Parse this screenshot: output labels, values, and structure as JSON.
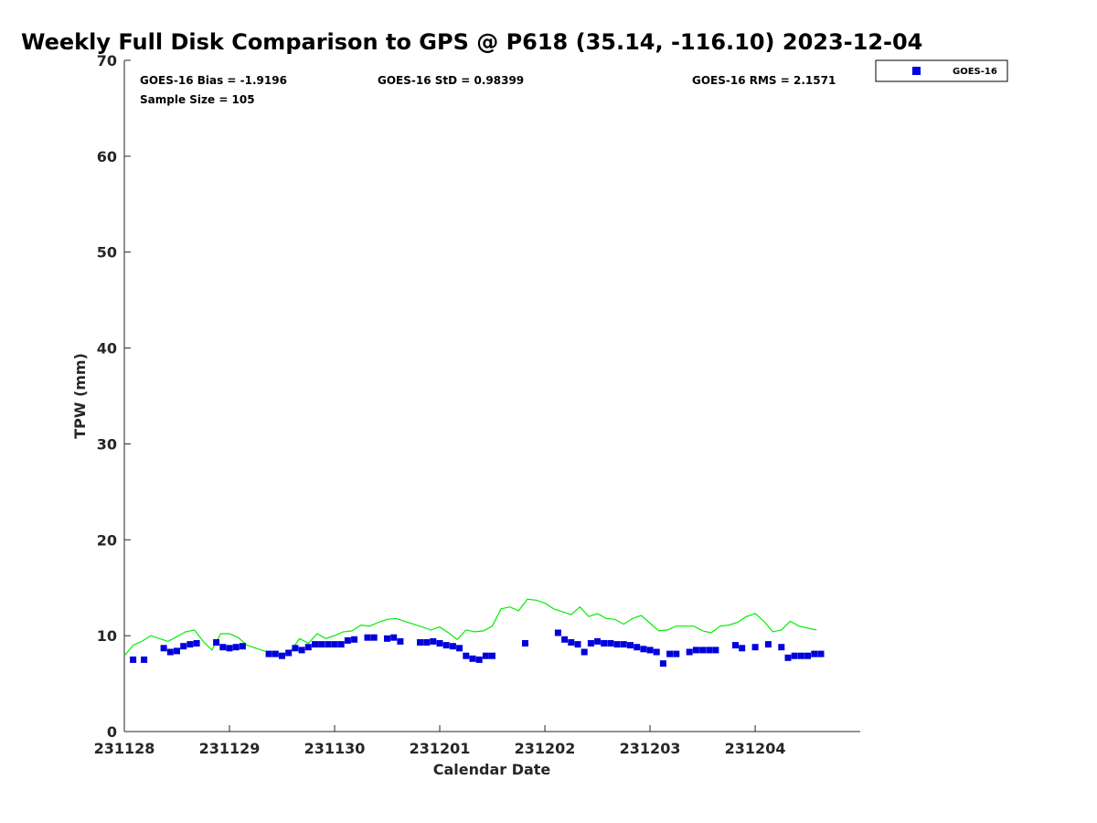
{
  "chart_data": {
    "type": "scatter",
    "title": "Weekly Full Disk Comparison to GPS @ P618 (35.14, -116.10) 2023-12-04",
    "xlabel": "Calendar Date",
    "ylabel": "TPW (mm)",
    "xlim": [
      "2023-11-28T00:00",
      "2023-12-04T23:59"
    ],
    "ylim": [
      0,
      70
    ],
    "y_ticks": [
      0,
      10,
      20,
      30,
      40,
      50,
      60,
      70
    ],
    "x_ticks": [
      {
        "value": "2023-11-28T00:00",
        "label": "231128"
      },
      {
        "value": "2023-11-29T00:00",
        "label": "231129"
      },
      {
        "value": "2023-11-30T00:00",
        "label": "231130"
      },
      {
        "value": "2023-12-01T00:00",
        "label": "231201"
      },
      {
        "value": "2023-12-02T00:00",
        "label": "231202"
      },
      {
        "value": "2023-12-03T00:00",
        "label": "231203"
      },
      {
        "value": "2023-12-04T00:00",
        "label": "231204"
      }
    ],
    "grid": false,
    "legend_position": "outside-top-right",
    "stats": {
      "bias": "GOES-16 Bias = -1.9196",
      "std": "GOES-16 StD = 0.98399",
      "rms": "GOES-16 RMS = 2.1571",
      "sample": "Sample Size = 105"
    },
    "series": [
      {
        "name": "GOES-16",
        "marker": "square",
        "color": "#0000dd",
        "points": [
          [
            "2023-11-28T02:00",
            7.5
          ],
          [
            "2023-11-28T04:30",
            7.5
          ],
          [
            "2023-11-28T09:00",
            8.7
          ],
          [
            "2023-11-28T10:30",
            8.3
          ],
          [
            "2023-11-28T12:00",
            8.4
          ],
          [
            "2023-11-28T13:30",
            8.9
          ],
          [
            "2023-11-28T15:00",
            9.1
          ],
          [
            "2023-11-28T16:30",
            9.2
          ],
          [
            "2023-11-28T21:00",
            9.3
          ],
          [
            "2023-11-28T22:30",
            8.8
          ],
          [
            "2023-11-29T00:00",
            8.7
          ],
          [
            "2023-11-29T01:30",
            8.8
          ],
          [
            "2023-11-29T03:00",
            8.9
          ],
          [
            "2023-11-29T09:00",
            8.1
          ],
          [
            "2023-11-29T10:30",
            8.1
          ],
          [
            "2023-11-29T12:00",
            7.9
          ],
          [
            "2023-11-29T13:30",
            8.2
          ],
          [
            "2023-11-29T15:00",
            8.7
          ],
          [
            "2023-11-29T16:30",
            8.5
          ],
          [
            "2023-11-29T18:00",
            8.8
          ],
          [
            "2023-11-29T19:30",
            9.1
          ],
          [
            "2023-11-29T21:00",
            9.1
          ],
          [
            "2023-11-29T22:30",
            9.1
          ],
          [
            "2023-11-30T00:00",
            9.1
          ],
          [
            "2023-11-30T01:30",
            9.1
          ],
          [
            "2023-11-30T03:00",
            9.5
          ],
          [
            "2023-11-30T04:30",
            9.6
          ],
          [
            "2023-11-30T07:30",
            9.8
          ],
          [
            "2023-11-30T09:00",
            9.8
          ],
          [
            "2023-11-30T12:00",
            9.7
          ],
          [
            "2023-11-30T13:30",
            9.8
          ],
          [
            "2023-11-30T15:00",
            9.4
          ],
          [
            "2023-11-30T19:30",
            9.3
          ],
          [
            "2023-11-30T21:00",
            9.3
          ],
          [
            "2023-11-30T22:30",
            9.4
          ],
          [
            "2023-12-01T00:00",
            9.2
          ],
          [
            "2023-12-01T01:30",
            9.0
          ],
          [
            "2023-12-01T03:00",
            8.9
          ],
          [
            "2023-12-01T04:30",
            8.7
          ],
          [
            "2023-12-01T06:00",
            7.9
          ],
          [
            "2023-12-01T07:30",
            7.6
          ],
          [
            "2023-12-01T09:00",
            7.5
          ],
          [
            "2023-12-01T10:30",
            7.9
          ],
          [
            "2023-12-01T12:00",
            7.9
          ],
          [
            "2023-12-01T19:30",
            9.2
          ],
          [
            "2023-12-02T03:00",
            10.3
          ],
          [
            "2023-12-02T04:30",
            9.6
          ],
          [
            "2023-12-02T06:00",
            9.3
          ],
          [
            "2023-12-02T07:30",
            9.1
          ],
          [
            "2023-12-02T09:00",
            8.3
          ],
          [
            "2023-12-02T10:30",
            9.2
          ],
          [
            "2023-12-02T12:00",
            9.4
          ],
          [
            "2023-12-02T13:30",
            9.2
          ],
          [
            "2023-12-02T15:00",
            9.2
          ],
          [
            "2023-12-02T16:30",
            9.1
          ],
          [
            "2023-12-02T18:00",
            9.1
          ],
          [
            "2023-12-02T19:30",
            9.0
          ],
          [
            "2023-12-02T21:00",
            8.8
          ],
          [
            "2023-12-02T22:30",
            8.6
          ],
          [
            "2023-12-03T00:00",
            8.5
          ],
          [
            "2023-12-03T01:30",
            8.3
          ],
          [
            "2023-12-03T03:00",
            7.1
          ],
          [
            "2023-12-03T04:30",
            8.1
          ],
          [
            "2023-12-03T06:00",
            8.1
          ],
          [
            "2023-12-03T09:00",
            8.3
          ],
          [
            "2023-12-03T10:30",
            8.5
          ],
          [
            "2023-12-03T12:00",
            8.5
          ],
          [
            "2023-12-03T13:30",
            8.5
          ],
          [
            "2023-12-03T15:00",
            8.5
          ],
          [
            "2023-12-03T19:30",
            9.0
          ],
          [
            "2023-12-03T21:00",
            8.7
          ],
          [
            "2023-12-04T00:00",
            8.8
          ],
          [
            "2023-12-04T03:00",
            9.1
          ],
          [
            "2023-12-04T06:00",
            8.8
          ],
          [
            "2023-12-04T07:30",
            7.7
          ],
          [
            "2023-12-04T09:00",
            7.9
          ],
          [
            "2023-12-04T10:30",
            7.9
          ],
          [
            "2023-12-04T12:00",
            7.9
          ],
          [
            "2023-12-04T13:30",
            8.1
          ],
          [
            "2023-12-04T15:00",
            8.1
          ]
        ]
      },
      {
        "name": "",
        "type": "line",
        "color": "#00ee00",
        "points": [
          [
            "2023-11-28T00:00",
            7.9
          ],
          [
            "2023-11-28T02:00",
            9.0
          ],
          [
            "2023-11-28T04:00",
            9.4
          ],
          [
            "2023-11-28T06:00",
            10.0
          ],
          [
            "2023-11-28T08:00",
            9.7
          ],
          [
            "2023-11-28T10:00",
            9.4
          ],
          [
            "2023-11-28T12:00",
            9.9
          ],
          [
            "2023-11-28T14:00",
            10.4
          ],
          [
            "2023-11-28T16:00",
            10.6
          ],
          [
            "2023-11-28T18:00",
            9.4
          ],
          [
            "2023-11-28T20:00",
            8.5
          ],
          [
            "2023-11-28T22:00",
            10.2
          ],
          [
            "2023-11-29T00:00",
            10.2
          ],
          [
            "2023-11-29T02:00",
            9.8
          ],
          [
            "2023-11-29T04:00",
            9.0
          ],
          [
            "2023-11-29T08:00",
            8.4
          ],
          [
            "2023-11-29T12:00",
            7.9
          ],
          [
            "2023-11-29T14:00",
            8.4
          ],
          [
            "2023-11-29T16:00",
            9.7
          ],
          [
            "2023-11-29T18:00",
            9.2
          ],
          [
            "2023-11-29T20:00",
            10.2
          ],
          [
            "2023-11-29T22:00",
            9.7
          ],
          [
            "2023-11-30T00:00",
            10.0
          ],
          [
            "2023-11-30T02:00",
            10.4
          ],
          [
            "2023-11-30T04:00",
            10.5
          ],
          [
            "2023-11-30T06:00",
            11.1
          ],
          [
            "2023-11-30T08:00",
            11.0
          ],
          [
            "2023-11-30T10:00",
            11.4
          ],
          [
            "2023-11-30T12:00",
            11.7
          ],
          [
            "2023-11-30T14:00",
            11.8
          ],
          [
            "2023-11-30T16:00",
            11.5
          ],
          [
            "2023-11-30T20:00",
            10.9
          ],
          [
            "2023-11-30T22:00",
            10.6
          ],
          [
            "2023-12-01T00:00",
            10.9
          ],
          [
            "2023-12-01T02:00",
            10.3
          ],
          [
            "2023-12-01T04:00",
            9.6
          ],
          [
            "2023-12-01T06:00",
            10.6
          ],
          [
            "2023-12-01T08:00",
            10.4
          ],
          [
            "2023-12-01T10:00",
            10.5
          ],
          [
            "2023-12-01T12:00",
            11.0
          ],
          [
            "2023-12-01T14:00",
            12.8
          ],
          [
            "2023-12-01T16:00",
            13.0
          ],
          [
            "2023-12-01T18:00",
            12.6
          ],
          [
            "2023-12-01T20:00",
            13.8
          ],
          [
            "2023-12-01T22:00",
            13.7
          ],
          [
            "2023-12-02T00:00",
            13.4
          ],
          [
            "2023-12-02T02:00",
            12.8
          ],
          [
            "2023-12-02T04:00",
            12.5
          ],
          [
            "2023-12-02T06:00",
            12.2
          ],
          [
            "2023-12-02T08:00",
            13.0
          ],
          [
            "2023-12-02T10:00",
            12.0
          ],
          [
            "2023-12-02T12:00",
            12.3
          ],
          [
            "2023-12-02T14:00",
            11.8
          ],
          [
            "2023-12-02T16:00",
            11.7
          ],
          [
            "2023-12-02T18:00",
            11.2
          ],
          [
            "2023-12-02T20:00",
            11.8
          ],
          [
            "2023-12-02T22:00",
            12.1
          ],
          [
            "2023-12-03T00:00",
            11.3
          ],
          [
            "2023-12-03T02:00",
            10.5
          ],
          [
            "2023-12-03T04:00",
            10.6
          ],
          [
            "2023-12-03T06:00",
            11.0
          ],
          [
            "2023-12-03T10:00",
            11.0
          ],
          [
            "2023-12-03T12:00",
            10.5
          ],
          [
            "2023-12-03T14:00",
            10.3
          ],
          [
            "2023-12-03T16:00",
            11.0
          ],
          [
            "2023-12-03T18:00",
            11.1
          ],
          [
            "2023-12-03T20:00",
            11.4
          ],
          [
            "2023-12-03T22:00",
            12.0
          ],
          [
            "2023-12-04T00:00",
            12.3
          ],
          [
            "2023-12-04T02:00",
            11.5
          ],
          [
            "2023-12-04T04:00",
            10.4
          ],
          [
            "2023-12-04T06:00",
            10.6
          ],
          [
            "2023-12-04T08:00",
            11.5
          ],
          [
            "2023-12-04T10:00",
            11.0
          ],
          [
            "2023-12-04T14:00",
            10.6
          ]
        ]
      }
    ]
  }
}
